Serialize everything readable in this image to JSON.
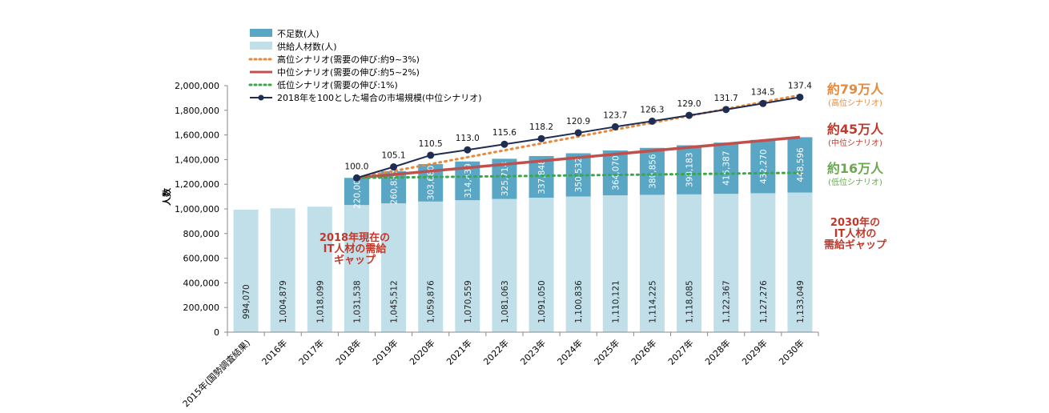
{
  "chart_data": {
    "type": "bar",
    "ylabel": "人数",
    "ylim": [
      0,
      2000000
    ],
    "y_ticks": [
      "0",
      "200,000",
      "400,000",
      "600,000",
      "800,000",
      "1,000,000",
      "1,200,000",
      "1,400,000",
      "1,600,000",
      "1,800,000",
      "2,000,000"
    ],
    "categories": [
      "2015年(国勢調査結果)",
      "2016年",
      "2017年",
      "2018年",
      "2019年",
      "2020年",
      "2021年",
      "2022年",
      "2023年",
      "2024年",
      "2025年",
      "2026年",
      "2027年",
      "2028年",
      "2029年",
      "2030年"
    ],
    "supply": {
      "name": "供給人材数(人)",
      "values": [
        994070,
        1004879,
        1018099,
        1031538,
        1045512,
        1059876,
        1070559,
        1081063,
        1091050,
        1100836,
        1110121,
        1114225,
        1118085,
        1122367,
        1127276,
        1133049
      ],
      "labels": [
        "994,070",
        "1,004,879",
        "1,018,099",
        "1,031,538",
        "1,045,512",
        "1,059,876",
        "1,070,559",
        "1,081,063",
        "1,091,050",
        "1,100,836",
        "1,110,121",
        "1,114,225",
        "1,118,085",
        "1,122,367",
        "1,127,276",
        "1,133,049"
      ]
    },
    "shortage": {
      "name": "不足数(人)",
      "values": [
        null,
        null,
        null,
        220000,
        260835,
        303680,
        314439,
        325714,
        337848,
        350532,
        364070,
        380856,
        398183,
        415387,
        432270,
        448596
      ],
      "labels": [
        "",
        "",
        "",
        "220,000",
        "260,835",
        "303,680",
        "314,439",
        "325,714",
        "337,848",
        "350,532",
        "364,070",
        "380,856",
        "398,183",
        "415,387",
        "432,270",
        "448,596"
      ]
    },
    "scenarios": [
      {
        "name": "高位シナリオ(需要の伸び:約9~3%)",
        "start": 1251538,
        "end": 1923000,
        "color": "#e8883a",
        "style": "dotted"
      },
      {
        "name": "中位シナリオ(需要の伸び:約5~2%)",
        "start": 1251538,
        "end": 1581645,
        "color": "#c0504d",
        "style": "solid"
      },
      {
        "name": "低位シナリオ(需要の伸び:1%)",
        "start": 1251538,
        "end": 1293000,
        "color": "#3aa84a",
        "style": "dotted"
      }
    ],
    "market_index": {
      "name": "2018年を100とした場合の市場規模(中位シナリオ)",
      "values": [
        null,
        null,
        null,
        100.0,
        105.1,
        110.5,
        113.0,
        115.6,
        118.2,
        120.9,
        123.7,
        126.3,
        129.0,
        131.7,
        134.5,
        137.4
      ],
      "labels": [
        "",
        "",
        "",
        "100.0",
        "105.1",
        "110.5",
        "113.0",
        "115.6",
        "118.2",
        "120.9",
        "123.7",
        "126.3",
        "129.0",
        "131.7",
        "134.5",
        "137.4"
      ]
    },
    "right_labels": [
      {
        "big": "約79万人",
        "small": "(高位シナリオ)",
        "color": "#e8883a"
      },
      {
        "big": "約45万人",
        "small": "(中位シナリオ)",
        "color": "#c0392b"
      },
      {
        "big": "約16万人",
        "small": "(低位シナリオ)",
        "color": "#6aa84f"
      }
    ],
    "annotations": {
      "gap2018": [
        "2018年現在の",
        "IT人材の需給",
        "ギャップ"
      ],
      "gap2030": [
        "2030年の",
        "IT人材の",
        "需給ギャップ"
      ]
    },
    "colors": {
      "supply": "#c0dfe9",
      "shortage": "#5aa6c5",
      "index_line": "#1f2d52"
    }
  }
}
